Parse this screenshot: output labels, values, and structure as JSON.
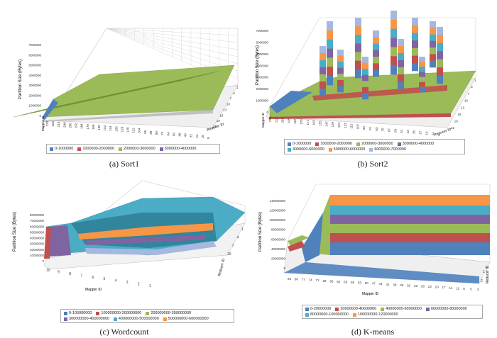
{
  "chart_data": [
    {
      "type": "surface",
      "caption": "(a) Sort1",
      "ylabel": "Partition Size (Bytes)",
      "xlabel": "Mapper ID",
      "zlabel": "Reducer ID",
      "yticks": [
        "0",
        "1000000",
        "2000000",
        "3000000",
        "4000000",
        "5000000",
        "6000000",
        "7000000"
      ],
      "xticks": [
        "232",
        "224",
        "216",
        "208",
        "200",
        "192",
        "184",
        "176",
        "168",
        "160",
        "152",
        "144",
        "136",
        "128",
        "120",
        "112",
        "104",
        "96",
        "88",
        "80",
        "72",
        "64",
        "56",
        "48",
        "40",
        "32",
        "24",
        "16",
        "8"
      ],
      "zticks": [
        "1",
        "4",
        "7",
        "10",
        "13",
        "16",
        "19",
        "22"
      ],
      "legend": [
        {
          "label": "0-1000000",
          "color": "#4f81bd"
        },
        {
          "label": "1000000-2000000",
          "color": "#c0504d"
        },
        {
          "label": "2000000-3000000",
          "color": "#9bbb59"
        },
        {
          "label": "3000000-4000000",
          "color": "#8064a2"
        }
      ]
    },
    {
      "type": "surface",
      "caption": "(b) Sort2",
      "ylabel": "Partition Size (Bytes)",
      "xlabel": "Mapper ID",
      "zlabel": "Reducer ID",
      "yticks": [
        "0",
        "1000000",
        "2000000",
        "3000000",
        "4000000",
        "5000000",
        "6000000",
        "7000000"
      ],
      "xticks": [
        "219",
        "211",
        "203",
        "195",
        "187",
        "179",
        "171",
        "163",
        "155",
        "147",
        "139",
        "131",
        "123",
        "115",
        "107",
        "99",
        "91",
        "83",
        "75",
        "67",
        "59",
        "51",
        "43",
        "35",
        "27",
        "19",
        "11",
        "3"
      ],
      "zticks": [
        "1",
        "4",
        "7",
        "10",
        "13",
        "16",
        "19",
        "22"
      ],
      "legend": [
        {
          "label": "0-1000000",
          "color": "#4f81bd"
        },
        {
          "label": "1000000-2000000",
          "color": "#c0504d"
        },
        {
          "label": "2000000-3000000",
          "color": "#9bbb59"
        },
        {
          "label": "3000000-4000000",
          "color": "#8064a2"
        },
        {
          "label": "4000000-5000000",
          "color": "#4bacc6"
        },
        {
          "label": "5000000-6000000",
          "color": "#f79646"
        },
        {
          "label": "6000000-7000000",
          "color": "#a5b8e0"
        }
      ]
    },
    {
      "type": "surface",
      "caption": "(c) Wordcount",
      "ylabel": "Partition Size (Bytes)",
      "xlabel": "Mapper ID",
      "zlabel": "Reducer ID",
      "yticks": [
        "0",
        "10000000",
        "20000000",
        "30000000",
        "40000000",
        "50000000",
        "60000000",
        "70000000",
        "80000000"
      ],
      "xticks": [
        "10",
        "9",
        "8",
        "7",
        "6",
        "5",
        "4",
        "3",
        "2",
        "1"
      ],
      "zticks": [
        "1",
        "4",
        "7",
        "10"
      ],
      "legend": [
        {
          "label": "0-100000000",
          "color": "#4f81bd"
        },
        {
          "label": "100000000-200000000",
          "color": "#c0504d"
        },
        {
          "label": "200000000-300000000",
          "color": "#9bbb59"
        },
        {
          "label": "300000000-400000000",
          "color": "#8064a2"
        },
        {
          "label": "400000000-500000000",
          "color": "#4bacc6"
        },
        {
          "label": "500000000-600000000",
          "color": "#f79646"
        }
      ]
    },
    {
      "type": "surface",
      "caption": "(d) K-means",
      "ylabel": "Partition Size (Bytes)",
      "xlabel": "Mapper ID",
      "zlabel": "Reducer ID",
      "yticks": [
        "0",
        "20000000",
        "40000000",
        "60000000",
        "80000000",
        "100000000",
        "120000000",
        "140000000"
      ],
      "xticks": [
        "83",
        "80",
        "77",
        "74",
        "71",
        "68",
        "65",
        "62",
        "59",
        "56",
        "53",
        "50",
        "47",
        "44",
        "41",
        "38",
        "35",
        "32",
        "29",
        "26",
        "23",
        "20",
        "17",
        "14",
        "11",
        "8",
        "5",
        "2"
      ],
      "zticks": [
        "1",
        "2"
      ],
      "legend": [
        {
          "label": "0-20000000",
          "color": "#4f81bd"
        },
        {
          "label": "20000000-40000000",
          "color": "#c0504d"
        },
        {
          "label": "40000000-60000000",
          "color": "#9bbb59"
        },
        {
          "label": "60000000-80000000",
          "color": "#8064a2"
        },
        {
          "label": "80000000-100000000",
          "color": "#4bacc6"
        },
        {
          "label": "100000000-120000000",
          "color": "#f79646"
        }
      ]
    }
  ]
}
